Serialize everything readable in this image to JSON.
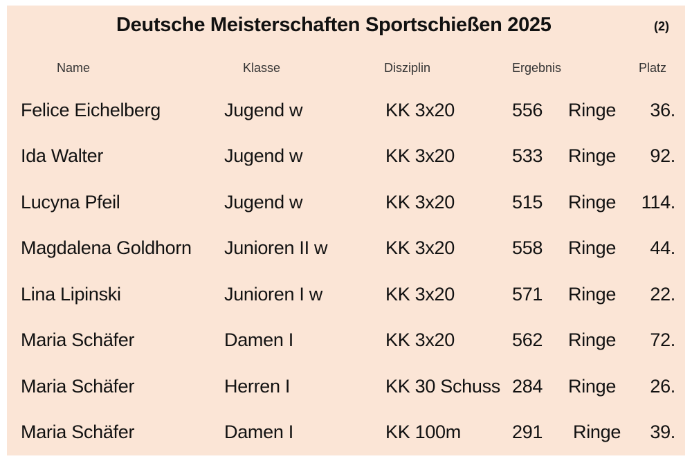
{
  "title": "Deutsche Meisterschaften Sportschießen 2025",
  "page_number": "(2)",
  "columns": {
    "name": "Name",
    "klasse": "Klasse",
    "disziplin": "Disziplin",
    "ergebnis": "Ergebnis",
    "platz": "Platz"
  },
  "rows": [
    {
      "name": "Felice Eichelberg",
      "klasse": "Jugend w",
      "disziplin": "KK 3x20",
      "ergebnis": "556",
      "einheit": "Ringe",
      "platz": "36."
    },
    {
      "name": "Ida Walter",
      "klasse": "Jugend w",
      "disziplin": "KK 3x20",
      "ergebnis": "533",
      "einheit": "Ringe",
      "platz": "92."
    },
    {
      "name": "Lucyna Pfeil",
      "klasse": "Jugend w",
      "disziplin": "KK 3x20",
      "ergebnis": "515",
      "einheit": "Ringe",
      "platz": "114."
    },
    {
      "name": "Magdalena Goldhorn",
      "klasse": "Junioren II w",
      "disziplin": "KK 3x20",
      "ergebnis": "558",
      "einheit": "Ringe",
      "platz": "44."
    },
    {
      "name": "Lina Lipinski",
      "klasse": "Junioren I w",
      "disziplin": "KK 3x20",
      "ergebnis": "571",
      "einheit": "Ringe",
      "platz": "22."
    },
    {
      "name": "Maria Schäfer",
      "klasse": "Damen I",
      "disziplin": "KK 3x20",
      "ergebnis": "562",
      "einheit": "Ringe",
      "platz": "72."
    },
    {
      "name": "Maria Schäfer",
      "klasse": "Herren I",
      "disziplin": "KK 30 Schuss",
      "ergebnis": "284",
      "einheit": "Ringe",
      "platz": "26."
    },
    {
      "name": "Maria Schäfer",
      "klasse": "Damen I",
      "disziplin": "KK 100m",
      "ergebnis": "291",
      "einheit": "Ringe",
      "platz": "39."
    }
  ]
}
